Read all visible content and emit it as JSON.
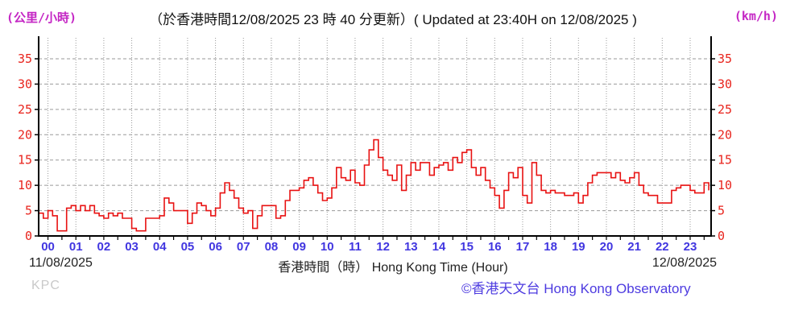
{
  "header": {
    "unit_left": "(公里/小時)",
    "title": "（於香港時間12/08/2025 23 時 40 分更新）( Updated at 23:40H on 12/08/2025 )",
    "unit_right": "(km/h)"
  },
  "footer": {
    "date_left": "11/08/2025",
    "axis_caption": "香港時間（時） Hong Kong Time (Hour)",
    "date_right": "12/08/2025",
    "station_code": "KPC",
    "copyright": "©香港天文台 Hong Kong Observatory"
  },
  "colors": {
    "line": "#e81212",
    "axis_numbers": "#e8231c",
    "hour_labels": "#4136e0",
    "units": "#c426c4",
    "copyright": "#4d3be0",
    "grid": "#9a9a9a",
    "axis": "#000000"
  },
  "chart_data": {
    "type": "line",
    "line_style": "step",
    "xlabel": "香港時間（時） Hong Kong Time (Hour)",
    "ylabel_left": "(公里/小時)",
    "ylabel_right": "(km/h)",
    "ylim": [
      0,
      35
    ],
    "yticks": [
      0,
      5,
      10,
      15,
      20,
      25,
      30,
      35
    ],
    "xtick_labels": [
      "00",
      "01",
      "02",
      "03",
      "04",
      "05",
      "06",
      "07",
      "08",
      "09",
      "10",
      "11",
      "12",
      "13",
      "14",
      "15",
      "16",
      "17",
      "18",
      "19",
      "20",
      "21",
      "22",
      "23"
    ],
    "x_start_date": "11/08/2025",
    "x_end_date": "12/08/2025",
    "start_hour": -0.3333,
    "interval_minutes": 10,
    "grid": true,
    "legend": "none",
    "values": [
      4.5,
      3.5,
      5,
      4,
      1,
      1,
      5.5,
      6,
      5,
      6,
      5,
      6,
      4.5,
      4,
      3.5,
      4.5,
      4,
      4.5,
      3.5,
      3.5,
      1.5,
      1,
      1,
      3.5,
      3.5,
      3.5,
      4,
      7.5,
      6.5,
      5,
      5,
      5,
      2.5,
      4.5,
      6.5,
      6,
      5,
      4,
      5.5,
      8.5,
      10.5,
      9,
      7.5,
      5.5,
      4.5,
      5,
      1.5,
      4,
      6,
      6,
      6,
      3.5,
      4,
      7,
      9,
      9,
      9.5,
      11,
      11.5,
      10,
      8.5,
      7,
      7.5,
      9.5,
      13.5,
      11.5,
      11,
      13,
      10.5,
      10,
      14,
      17,
      19,
      15.5,
      13,
      12,
      11,
      14,
      9,
      12,
      14.5,
      13,
      14.5,
      14.5,
      12,
      13.5,
      14,
      14.5,
      13,
      15.5,
      14.5,
      16.5,
      17,
      13.5,
      12,
      13.5,
      11,
      9.5,
      8,
      5.5,
      9,
      12.5,
      11.5,
      13.5,
      8,
      6.5,
      14.5,
      12,
      9,
      8.5,
      9,
      8.5,
      8.5,
      8,
      8,
      8.5,
      6.5,
      8,
      10.5,
      12,
      12.5,
      12.5,
      12.5,
      11.5,
      12.5,
      11,
      10.5,
      11.5,
      12.5,
      10,
      8.5,
      8,
      8,
      6.5,
      6.5,
      6.5,
      9,
      9.5,
      10,
      10,
      9,
      8.5,
      8.5,
      10.5,
      9
    ]
  }
}
